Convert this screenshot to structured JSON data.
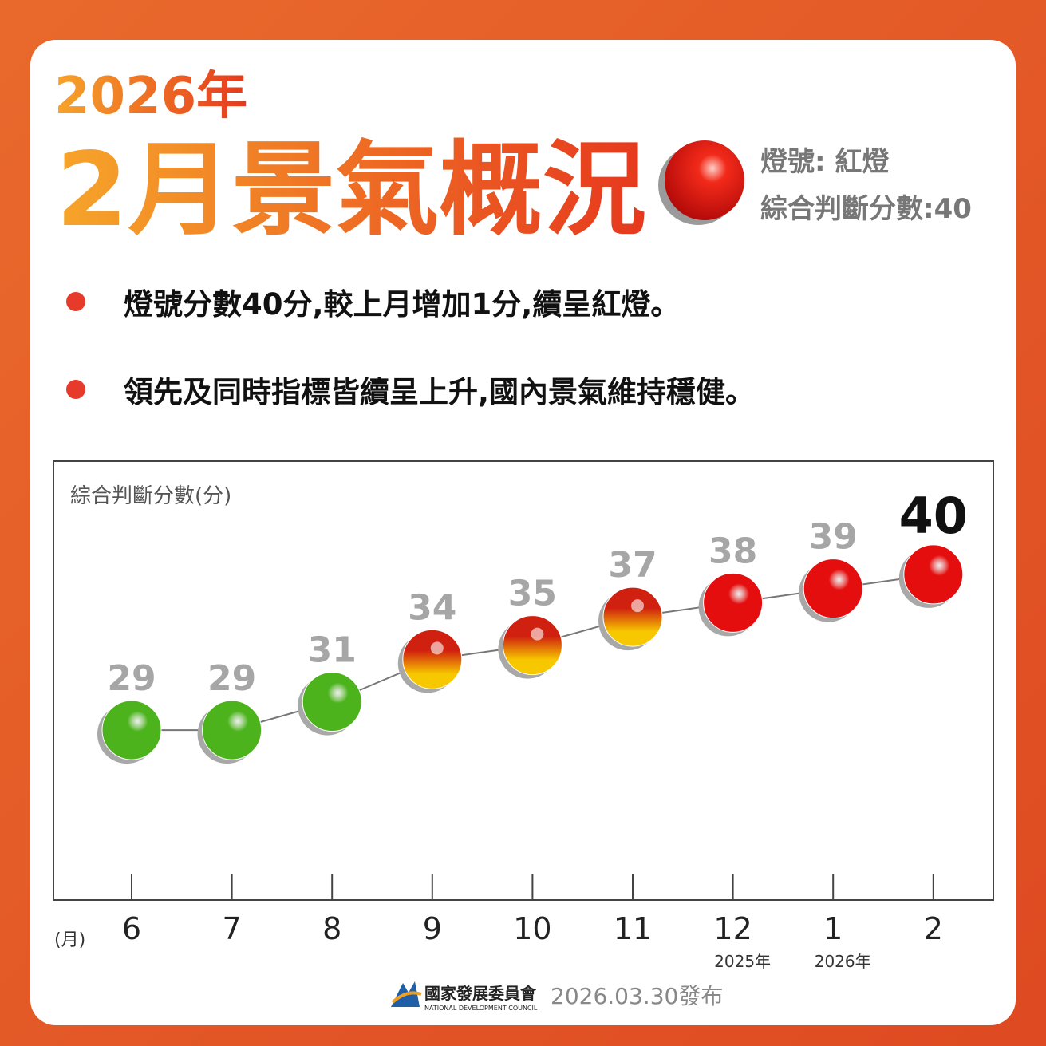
{
  "header": {
    "year": "2026年",
    "title": "2月景氣概況",
    "signal": "燈號: 紅燈",
    "score": "綜合判斷分數:40"
  },
  "bullets": [
    "燈號分數40分,較上月增加1分,續呈紅燈。",
    "領先及同時指標皆續呈上升,國內景氣維持穩健。"
  ],
  "chart_data": {
    "type": "line",
    "y_label": "綜合判斷分數(分)",
    "x_unit": "(月)",
    "categories": [
      "6",
      "7",
      "8",
      "9",
      "10",
      "11",
      "12",
      "1",
      "2"
    ],
    "category_notes": [
      null,
      null,
      null,
      null,
      null,
      null,
      "2025年",
      "2026年",
      null
    ],
    "values": [
      29,
      29,
      31,
      34,
      35,
      37,
      38,
      39,
      40
    ],
    "point_colors": [
      "#4cb31c",
      "#4cb31c",
      "#4cb31c",
      [
        "#d0200f",
        "#f7c800"
      ],
      [
        "#d0200f",
        "#f7c800"
      ],
      [
        "#d0200f",
        "#f7c800"
      ],
      "#e50e0e",
      "#e50e0e",
      "#e50e0e"
    ],
    "line_color": "#777777",
    "ylim": [
      17,
      48
    ]
  },
  "footer": {
    "org": "國家發展委員會",
    "org_en": "NATIONAL DEVELOPMENT COUNCIL",
    "date": "2026.03.30發布"
  }
}
